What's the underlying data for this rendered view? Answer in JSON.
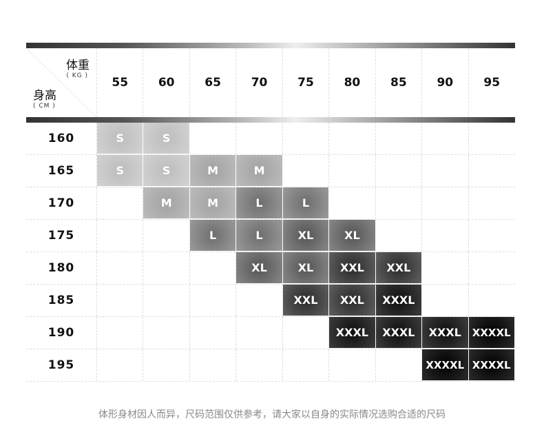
{
  "header": {
    "weight_label": "体重",
    "weight_unit": "( KG )",
    "height_label": "身高",
    "height_unit": "( CM )",
    "weights": [
      "55",
      "60",
      "65",
      "70",
      "75",
      "80",
      "85",
      "90",
      "95"
    ]
  },
  "rows": [
    {
      "height": "160",
      "cells": [
        "S",
        "S",
        "",
        "",
        "",
        "",
        "",
        "",
        ""
      ]
    },
    {
      "height": "165",
      "cells": [
        "S",
        "S",
        "M",
        "M",
        "",
        "",
        "",
        "",
        ""
      ]
    },
    {
      "height": "170",
      "cells": [
        "",
        "M",
        "M",
        "L",
        "L",
        "",
        "",
        "",
        ""
      ]
    },
    {
      "height": "175",
      "cells": [
        "",
        "",
        "L",
        "L",
        "XL",
        "XL",
        "",
        "",
        ""
      ]
    },
    {
      "height": "180",
      "cells": [
        "",
        "",
        "",
        "XL",
        "XL",
        "XXL",
        "XXL",
        "",
        ""
      ]
    },
    {
      "height": "185",
      "cells": [
        "",
        "",
        "",
        "",
        "XXL",
        "XXL",
        "XXXL",
        "",
        ""
      ]
    },
    {
      "height": "190",
      "cells": [
        "",
        "",
        "",
        "",
        "",
        "XXXL",
        "XXXL",
        "XXXL",
        "XXXXL"
      ]
    },
    {
      "height": "195",
      "cells": [
        "",
        "",
        "",
        "",
        "",
        "",
        "",
        "XXXXL",
        "XXXXL"
      ]
    }
  ],
  "note": "体形身材因人而异，尺码范围仅供参考，请大家以自身的实际情况选购合适的尺码"
}
